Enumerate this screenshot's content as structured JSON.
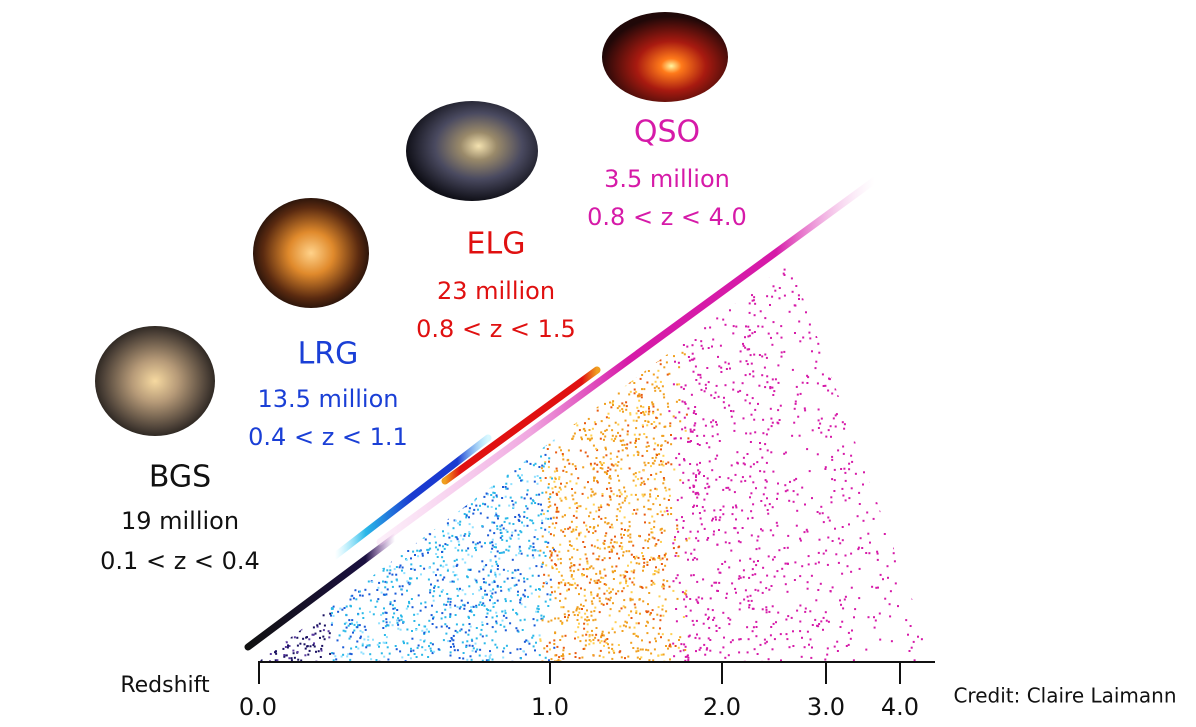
{
  "tracers": [
    {
      "name": "BGS",
      "count": "19 million",
      "range": "0.1 < z < 0.4"
    },
    {
      "name": "LRG",
      "count": "13.5 million",
      "range": "0.4 < z < 1.1"
    },
    {
      "name": "ELG",
      "count": "23 million",
      "range": "0.8 < z < 1.5"
    },
    {
      "name": "QSO",
      "count": "3.5 million",
      "range": "0.8 < z < 4.0"
    }
  ],
  "axis": {
    "label": "Redshift",
    "ticks": [
      "0.0",
      "1.0",
      "2.0",
      "3.0",
      "4.0"
    ]
  },
  "credit": "Credit: Claire Laimann"
}
